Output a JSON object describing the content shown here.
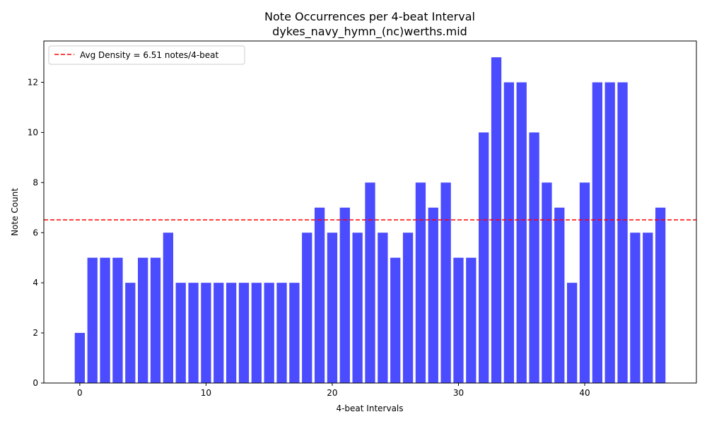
{
  "chart_data": {
    "type": "bar",
    "title": "Note Occurrences per 4-beat Interval",
    "subtitle": "dykes_navy_hymn_(nc)werths.mid",
    "xlabel": "4-beat Intervals",
    "ylabel": "Note Count",
    "x": [
      0,
      1,
      2,
      3,
      4,
      5,
      6,
      7,
      8,
      9,
      10,
      11,
      12,
      13,
      14,
      15,
      16,
      17,
      18,
      19,
      20,
      21,
      22,
      23,
      24,
      25,
      26,
      27,
      28,
      29,
      30,
      31,
      32,
      33,
      34,
      35,
      36,
      37,
      38,
      39,
      40,
      41,
      42,
      43,
      44,
      45,
      46
    ],
    "values": [
      2,
      5,
      5,
      5,
      4,
      5,
      5,
      6,
      4,
      4,
      4,
      4,
      4,
      4,
      4,
      4,
      4,
      4,
      6,
      7,
      6,
      7,
      6,
      8,
      6,
      5,
      6,
      8,
      7,
      8,
      5,
      5,
      10,
      13,
      12,
      12,
      10,
      8,
      7,
      4,
      8,
      12,
      12,
      12,
      6,
      6,
      7
    ],
    "xlim": [
      -2.85,
      48.85
    ],
    "ylim": [
      0,
      13.65
    ],
    "xticks": [
      0,
      10,
      20,
      30,
      40
    ],
    "yticks": [
      0,
      2,
      4,
      6,
      8,
      10,
      12
    ],
    "bar_color": "#4b4bff",
    "average_line": {
      "value": 6.51,
      "color": "#ff0000",
      "label": "Avg Density = 6.51 notes/4-beat"
    },
    "legend_position": "upper-left",
    "grid": false
  }
}
